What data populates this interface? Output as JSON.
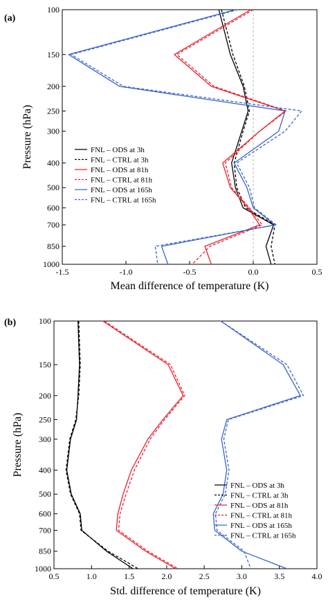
{
  "colors": {
    "black": "#000000",
    "red": "#e8202a",
    "blue": "#3a64c8",
    "zero_line": "#b4b4b4"
  },
  "legend_entries": [
    {
      "label": "FNL – ODS at 3h",
      "color": "#000000",
      "dashed": false
    },
    {
      "label": "FNL – CTRL at 3h",
      "color": "#000000",
      "dashed": true
    },
    {
      "label": "FNL – ODS at 81h",
      "color": "#e8202a",
      "dashed": false
    },
    {
      "label": "FNL – CTRL at 81h",
      "color": "#e8202a",
      "dashed": true
    },
    {
      "label": "FNL – ODS at 165h",
      "color": "#3a64c8",
      "dashed": false
    },
    {
      "label": "FNL – CTRL at 165h",
      "color": "#3a64c8",
      "dashed": true
    }
  ],
  "chart_data": [
    {
      "type": "line",
      "panel_label": "(a)",
      "xlabel": "Mean difference  of temperature (K)",
      "ylabel": "Pressure (hPa)",
      "xlim": [
        -1.5,
        0.5
      ],
      "ylim": [
        100,
        1000
      ],
      "y_scale": "log",
      "y_inverted": true,
      "x_ticks": [
        "-1.5",
        "-1.0",
        "-0.5",
        "0.0",
        "0.5"
      ],
      "x_tick_values": [
        -1.5,
        -1.0,
        -0.5,
        0.0,
        0.5
      ],
      "y_ticks": [
        "100",
        "150",
        "200",
        "250",
        "300",
        "400",
        "500",
        "600",
        "700",
        "850",
        "1000"
      ],
      "y_tick_values": [
        100,
        150,
        200,
        250,
        300,
        400,
        500,
        600,
        700,
        850,
        1000
      ],
      "zero_line": 0.0,
      "legend_position": "left-middle",
      "pressure_levels": [
        100,
        150,
        200,
        250,
        300,
        400,
        500,
        600,
        700,
        850,
        1000
      ],
      "series": [
        {
          "name": "FNL – ODS at 3h",
          "values": [
            -0.27,
            -0.18,
            -0.08,
            -0.04,
            -0.09,
            -0.17,
            -0.14,
            -0.08,
            0.16,
            0.1,
            0.14
          ]
        },
        {
          "name": "FNL – CTRL at 3h",
          "values": [
            -0.25,
            -0.16,
            -0.07,
            -0.03,
            -0.08,
            -0.15,
            -0.13,
            -0.06,
            0.17,
            0.14,
            0.17
          ]
        },
        {
          "name": "FNL – ODS at 81h",
          "values": [
            -0.02,
            -0.62,
            -0.33,
            0.25,
            0.05,
            -0.24,
            -0.18,
            -0.04,
            0.05,
            -0.38,
            -0.33
          ]
        },
        {
          "name": "FNL – CTRL at 81h",
          "values": [
            0.0,
            -0.6,
            -0.31,
            0.26,
            0.05,
            -0.22,
            -0.17,
            -0.03,
            0.07,
            -0.34,
            -0.48
          ]
        },
        {
          "name": "FNL – ODS at 165h",
          "values": [
            -0.14,
            -1.45,
            -1.05,
            0.25,
            0.2,
            -0.15,
            -0.05,
            0.0,
            0.17,
            -0.72,
            -0.67
          ]
        },
        {
          "name": "FNL – CTRL at 165h",
          "values": [
            -0.12,
            -1.43,
            -1.02,
            0.38,
            0.25,
            -0.13,
            -0.03,
            0.01,
            0.18,
            -0.77,
            -0.75
          ]
        }
      ]
    },
    {
      "type": "line",
      "panel_label": "(b)",
      "xlabel": "Std. difference  of temperature (K)",
      "ylabel": "Pressure (hPa)",
      "xlim": [
        0.5,
        4.0
      ],
      "ylim": [
        100,
        1000
      ],
      "y_scale": "log",
      "y_inverted": true,
      "x_ticks": [
        "0.5",
        "1.0",
        "1.5",
        "2.0",
        "2.5",
        "3.0",
        "3.5",
        "4.0"
      ],
      "x_tick_values": [
        0.5,
        1.0,
        1.5,
        2.0,
        2.5,
        3.0,
        3.5,
        4.0
      ],
      "y_ticks": [
        "100",
        "150",
        "200",
        "250",
        "300",
        "400",
        "500",
        "600",
        "700",
        "850",
        "1000"
      ],
      "y_tick_values": [
        100,
        150,
        200,
        250,
        300,
        400,
        500,
        600,
        700,
        850,
        1000
      ],
      "legend_position": "bottom-right",
      "pressure_levels": [
        100,
        150,
        200,
        250,
        300,
        400,
        500,
        600,
        700,
        850,
        1000
      ],
      "series": [
        {
          "name": "FNL – ODS at 3h",
          "values": [
            0.82,
            0.84,
            0.82,
            0.8,
            0.72,
            0.67,
            0.73,
            0.85,
            0.87,
            1.2,
            1.55
          ]
        },
        {
          "name": "FNL – CTRL at 3h",
          "values": [
            0.83,
            0.85,
            0.83,
            0.79,
            0.71,
            0.66,
            0.72,
            0.84,
            0.86,
            1.22,
            1.62
          ]
        },
        {
          "name": "FNL – ODS at 81h",
          "values": [
            1.15,
            2.02,
            2.22,
            1.95,
            1.75,
            1.53,
            1.42,
            1.35,
            1.33,
            1.72,
            2.12
          ]
        },
        {
          "name": "FNL – CTRL at 81h",
          "values": [
            1.17,
            2.05,
            2.24,
            1.97,
            1.78,
            1.57,
            1.46,
            1.38,
            1.36,
            1.75,
            2.15
          ]
        },
        {
          "name": "FNL – ODS at 165h",
          "values": [
            2.72,
            3.55,
            3.78,
            2.8,
            2.73,
            2.8,
            2.75,
            2.62,
            2.64,
            3.0,
            3.6
          ]
        },
        {
          "name": "FNL – CTRL at 165h",
          "values": [
            2.72,
            3.6,
            3.82,
            2.82,
            2.76,
            2.83,
            2.78,
            2.65,
            2.67,
            3.03,
            3.12
          ]
        }
      ]
    }
  ]
}
